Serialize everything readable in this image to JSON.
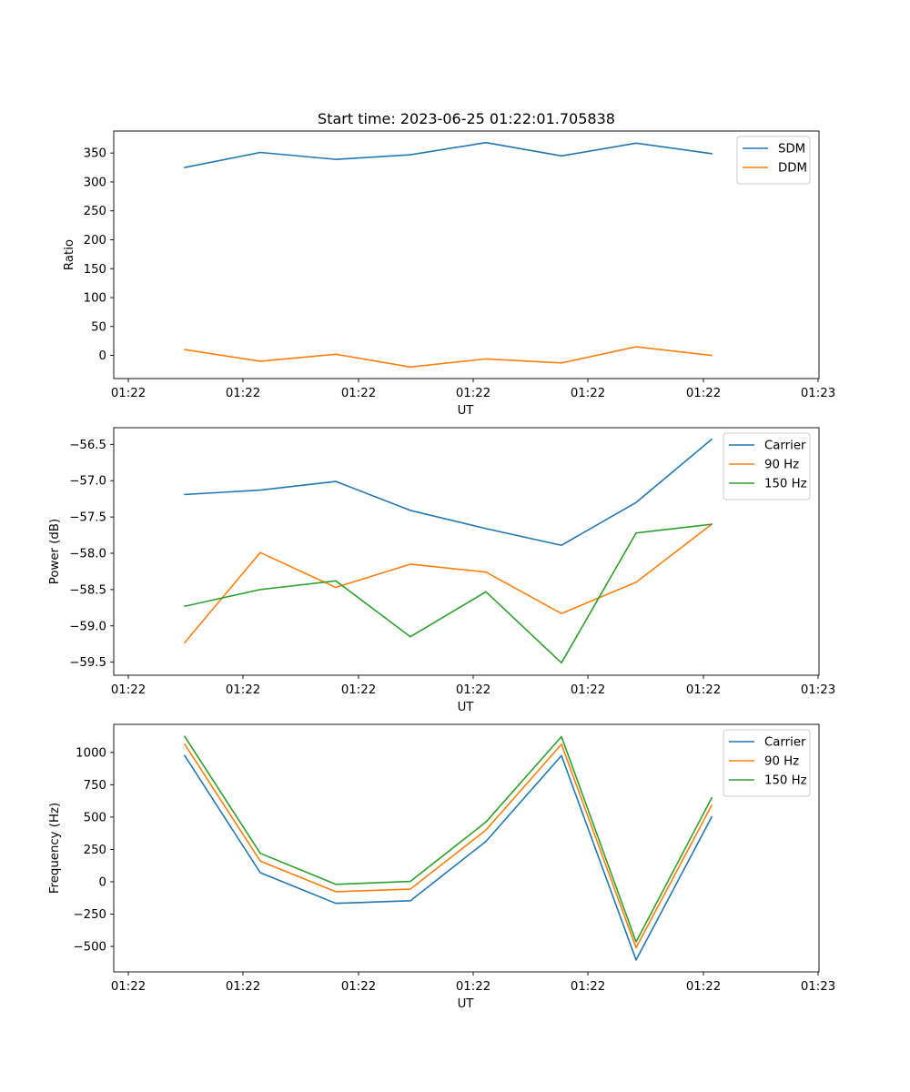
{
  "title": "Start time: 2023-06-25 01:22:01.705838",
  "chart_data": [
    {
      "type": "line",
      "xlabel": "UT",
      "ylabel": "Ratio",
      "x_tick_labels": [
        "01:22",
        "01:22",
        "01:22",
        "01:22",
        "01:22",
        "01:22",
        "01:23"
      ],
      "y_ticks": [
        0,
        50,
        100,
        150,
        200,
        250,
        300,
        350
      ],
      "y_tick_labels": [
        "0",
        "50",
        "100",
        "150",
        "200",
        "250",
        "300",
        "350"
      ],
      "ylim": [
        -40,
        388
      ],
      "legend_position": "top-right",
      "grid": false,
      "series": [
        {
          "name": "SDM",
          "color": "#1f77b4",
          "values": [
            325,
            351,
            339,
            347,
            368,
            345,
            367,
            349
          ]
        },
        {
          "name": "DDM",
          "color": "#ff7f0e",
          "values": [
            10,
            -10,
            2,
            -20,
            -6,
            -13,
            15,
            0
          ]
        }
      ]
    },
    {
      "type": "line",
      "xlabel": "UT",
      "ylabel": "Power (dB)",
      "x_tick_labels": [
        "01:22",
        "01:22",
        "01:22",
        "01:22",
        "01:22",
        "01:22",
        "01:23"
      ],
      "y_ticks": [
        -59.5,
        -59.0,
        -58.5,
        -58.0,
        -57.5,
        -57.0,
        -56.5
      ],
      "y_tick_labels": [
        "−59.5",
        "−59.0",
        "−58.5",
        "−58.0",
        "−57.5",
        "−57.0",
        "−56.5"
      ],
      "ylim": [
        -59.68,
        -56.27
      ],
      "legend_position": "top-right",
      "grid": false,
      "series": [
        {
          "name": "Carrier",
          "color": "#1f77b4",
          "values": [
            -57.19,
            -57.13,
            -57.01,
            -57.41,
            -57.66,
            -57.89,
            -57.3,
            -56.43
          ]
        },
        {
          "name": "90 Hz",
          "color": "#ff7f0e",
          "values": [
            -59.23,
            -57.99,
            -58.47,
            -58.15,
            -58.26,
            -58.83,
            -58.4,
            -57.6
          ]
        },
        {
          "name": "150 Hz",
          "color": "#2ca02c",
          "values": [
            -58.73,
            -58.5,
            -58.38,
            -59.15,
            -58.53,
            -59.51,
            -57.72,
            -57.6
          ]
        }
      ]
    },
    {
      "type": "line",
      "xlabel": "UT",
      "ylabel": "Frequency (Hz)",
      "x_tick_labels": [
        "01:22",
        "01:22",
        "01:22",
        "01:22",
        "01:22",
        "01:22",
        "01:23"
      ],
      "y_ticks": [
        -500,
        -250,
        0,
        250,
        500,
        750,
        1000
      ],
      "y_tick_labels": [
        "−500",
        "−250",
        "0",
        "250",
        "500",
        "750",
        "1000"
      ],
      "ylim": [
        -697,
        1217
      ],
      "legend_position": "top-right",
      "grid": false,
      "series": [
        {
          "name": "Carrier",
          "color": "#1f77b4",
          "values": [
            975,
            70,
            -167,
            -147,
            312,
            975,
            -605,
            500
          ]
        },
        {
          "name": "90 Hz",
          "color": "#ff7f0e",
          "values": [
            1063,
            160,
            -77,
            -57,
            400,
            1063,
            -510,
            590
          ]
        },
        {
          "name": "150 Hz",
          "color": "#2ca02c",
          "values": [
            1123,
            220,
            -20,
            3,
            462,
            1122,
            -465,
            647
          ]
        }
      ]
    }
  ]
}
